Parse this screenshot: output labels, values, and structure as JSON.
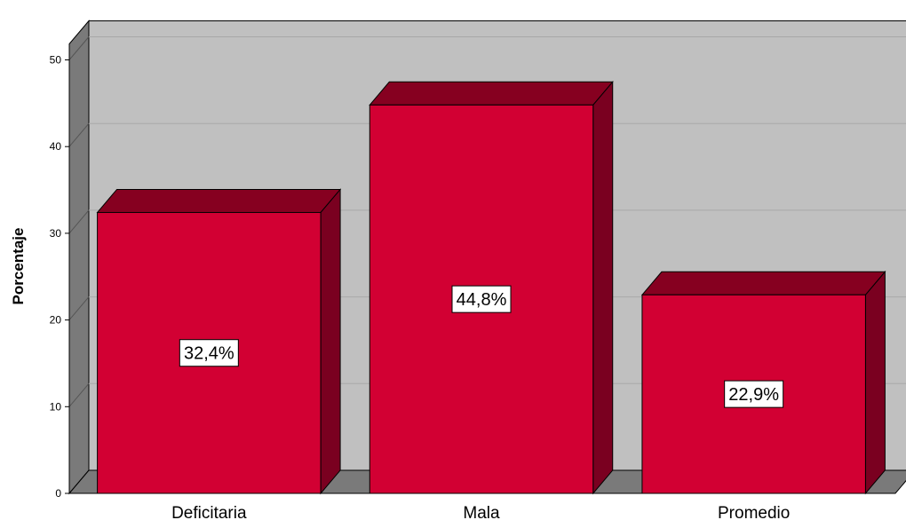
{
  "chart_data": {
    "type": "bar",
    "style": "3d",
    "categories": [
      "Deficitaria",
      "Mala",
      "Promedio"
    ],
    "values": [
      32.4,
      44.8,
      22.9
    ],
    "data_labels": [
      "32,4%",
      "44,8%",
      "22,9%"
    ],
    "ylabel": "Porcentaje",
    "xlabel": "",
    "ylim": [
      0,
      50
    ],
    "yticks": [
      "0",
      "10",
      "20",
      "30",
      "40",
      "50"
    ],
    "grid": true,
    "legend": "none"
  },
  "colors": {
    "bar_front": "#d20033",
    "bar_top": "#860020",
    "bar_side": "#7a0020",
    "back_wall": "#c0c0c0",
    "side_wall": "#7a7a7a",
    "floor": "#7a7a7a",
    "gridline": "#a8a8a8"
  }
}
